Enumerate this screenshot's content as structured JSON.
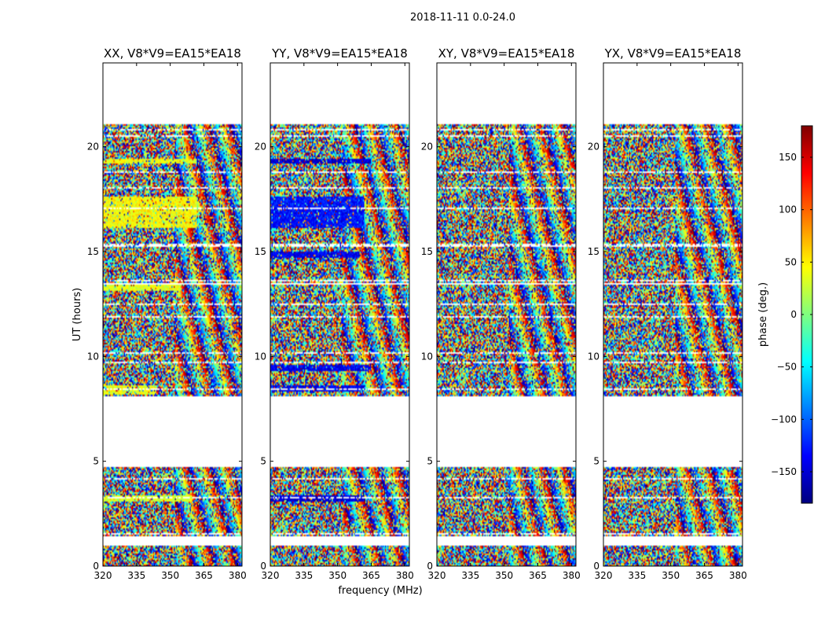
{
  "figure": {
    "suptitle": "2018-11-11 0.0-24.0",
    "shared_xlabel": "frequency (MHz)",
    "shared_ylabel": "UT (hours)"
  },
  "chart_data": {
    "type": "heatmap",
    "x_range_mhz": [
      320,
      382
    ],
    "y_range_hours": [
      0,
      24
    ],
    "x_ticks": [
      320,
      335,
      350,
      365,
      380
    ],
    "y_ticks": [
      0,
      5,
      10,
      15,
      20
    ],
    "colormap": "jet",
    "colorbar": {
      "label": "phase (deg.)",
      "range": [
        -180,
        180
      ],
      "ticks": [
        150,
        100,
        50,
        0,
        -50,
        -100,
        -150
      ],
      "tick_labels": [
        "150",
        "100",
        "50",
        "0",
        "−50",
        "−100",
        "−150"
      ]
    },
    "data_blocks_hours": [
      [
        0.0,
        0.95
      ],
      [
        1.4,
        4.7
      ],
      [
        8.1,
        13.4
      ],
      [
        13.5,
        16.5
      ],
      [
        16.5,
        21.1
      ]
    ],
    "panels": [
      {
        "title": "XX, V8*V9=EA15*EA18",
        "coherent_bands": [
          {
            "t0": 16.1,
            "t1": 17.6,
            "f_end": 362,
            "phase": 45
          },
          {
            "t0": 8.2,
            "t1": 8.6,
            "f_end": 344,
            "phase": 40
          },
          {
            "t0": 3.1,
            "t1": 3.4,
            "f_end": 360,
            "phase": 30
          },
          {
            "t0": 13.1,
            "t1": 13.4,
            "f_end": 355,
            "phase": 35
          },
          {
            "t0": 19.2,
            "t1": 19.4,
            "f_end": 362,
            "phase": 40
          }
        ]
      },
      {
        "title": "YY, V8*V9=EA15*EA18",
        "coherent_bands": [
          {
            "t0": 16.1,
            "t1": 17.6,
            "f_end": 362,
            "phase": -130
          },
          {
            "t0": 9.3,
            "t1": 9.6,
            "f_end": 365,
            "phase": -140
          },
          {
            "t0": 8.3,
            "t1": 8.6,
            "f_end": 362,
            "phase": -140
          },
          {
            "t0": 3.1,
            "t1": 3.4,
            "f_end": 362,
            "phase": -150
          },
          {
            "t0": 14.7,
            "t1": 15.0,
            "f_end": 360,
            "phase": -140
          },
          {
            "t0": 19.2,
            "t1": 19.4,
            "f_end": 365,
            "phase": -150
          }
        ]
      },
      {
        "title": "XY, V8*V9=EA15*EA18",
        "coherent_bands": []
      },
      {
        "title": "YX, V8*V9=EA15*EA18",
        "coherent_bands": []
      }
    ]
  }
}
